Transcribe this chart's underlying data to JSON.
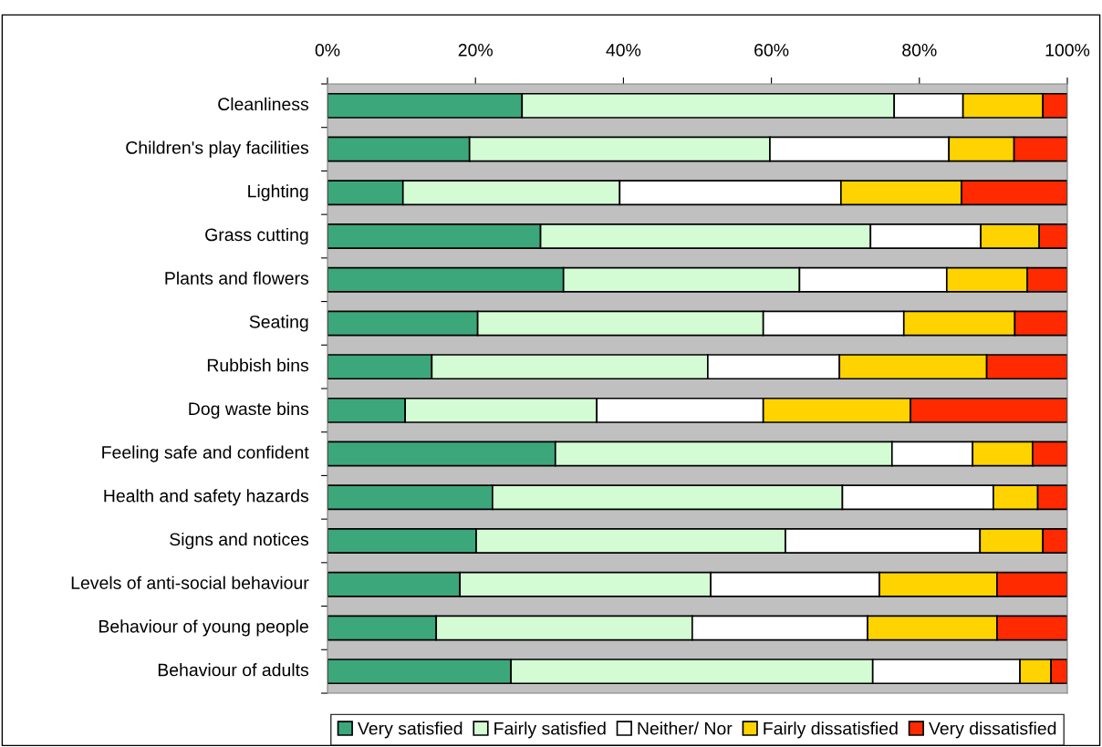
{
  "chart_data": {
    "type": "bar",
    "orientation": "horizontal",
    "stacked": true,
    "categories": [
      "Cleanliness",
      "Children's play facilities",
      "Lighting",
      "Grass cutting",
      "Plants and flowers",
      "Seating",
      "Rubbish bins",
      "Dog waste bins",
      "Feeling safe and confident",
      "Health and safety hazards",
      "Signs and notices",
      "Levels of anti-social behaviour",
      "Behaviour of young people",
      "Behaviour of adults"
    ],
    "series": [
      {
        "name": "Very satisfied",
        "color": "#3ca77a",
        "values": [
          26.3,
          19.2,
          10.2,
          28.8,
          31.9,
          20.3,
          14.1,
          10.5,
          30.8,
          22.3,
          20.1,
          17.9,
          14.7,
          24.8
        ]
      },
      {
        "name": "Fairly satisfied",
        "color": "#d4fcd4",
        "values": [
          50.3,
          40.6,
          29.3,
          44.6,
          31.9,
          38.6,
          37.3,
          25.9,
          45.5,
          47.3,
          41.8,
          33.9,
          34.6,
          48.9
        ]
      },
      {
        "name": "Neither/ Nor",
        "color": "#ffffff",
        "values": [
          9.3,
          24.2,
          29.9,
          14.9,
          19.9,
          19.0,
          17.8,
          22.5,
          10.9,
          20.4,
          26.3,
          22.8,
          23.7,
          19.9
        ]
      },
      {
        "name": "Fairly dissatisfied",
        "color": "#ffd300",
        "values": [
          10.8,
          8.8,
          16.3,
          7.9,
          10.9,
          15.0,
          19.9,
          19.9,
          8.1,
          6.0,
          8.5,
          15.9,
          17.5,
          4.2
        ]
      },
      {
        "name": "Very dissatisfied",
        "color": "#ff2a00",
        "values": [
          3.3,
          7.2,
          14.3,
          3.8,
          5.4,
          7.1,
          10.9,
          21.2,
          4.7,
          4.0,
          3.3,
          9.5,
          9.5,
          2.2
        ]
      }
    ],
    "xlim": [
      0,
      100
    ],
    "xticks": [
      {
        "value": 0,
        "label": "0%"
      },
      {
        "value": 20,
        "label": "20%"
      },
      {
        "value": 40,
        "label": "40%"
      },
      {
        "value": 60,
        "label": "60%"
      },
      {
        "value": 80,
        "label": "80%"
      },
      {
        "value": 100,
        "label": "100%"
      }
    ],
    "grid": false,
    "legend": "bottom"
  }
}
